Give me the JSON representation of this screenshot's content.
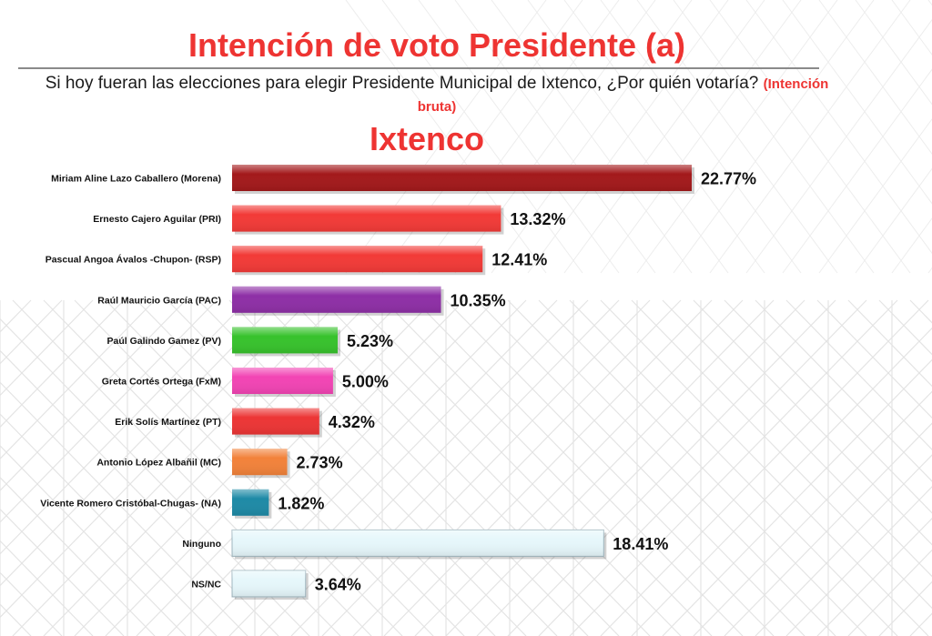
{
  "title": "Intención de voto Presidente (a)",
  "question": "Si hoy fueran las elecciones para elegir Presidente Municipal de Ixtenco, ¿Por quién votaría?",
  "question_note": "(Intención bruta)",
  "place": "Ixtenco",
  "chart_data": {
    "type": "bar",
    "orientation": "horizontal",
    "categories": [
      "Miriam Aline Lazo Caballero (Morena)",
      "Ernesto Cajero Aguilar (PRI)",
      "Pascual Angoa Ávalos -Chupon- (RSP)",
      "Raúl Mauricio García (PAC)",
      "Paúl Galindo Gamez (PV)",
      "Greta Cortés Ortega (FxM)",
      "Erik Solís Martínez (PT)",
      "Antonio López Albañil (MC)",
      "Vicente Romero Cristóbal-Chugas- (NA)",
      "Ninguno",
      "NS/NC"
    ],
    "values": [
      22.77,
      13.32,
      12.41,
      10.35,
      5.23,
      5.0,
      4.32,
      2.73,
      1.82,
      18.41,
      3.64
    ],
    "value_labels": [
      "22.77%",
      "13.32%",
      "12.41%",
      "10.35%",
      "5.23%",
      "5.00%",
      "4.32%",
      "2.73%",
      "1.82%",
      "18.41%",
      "3.64%"
    ],
    "colors": [
      "#a3191b",
      "#f23a37",
      "#f23a37",
      "#8e2fa6",
      "#37c22c",
      "#f244b4",
      "#ec3535",
      "#f2823a",
      "#1e8aa6",
      "#e6f7fb",
      "#e6f7fb"
    ],
    "xlim": [
      0,
      22.77
    ],
    "grid": false,
    "legend": "none"
  }
}
